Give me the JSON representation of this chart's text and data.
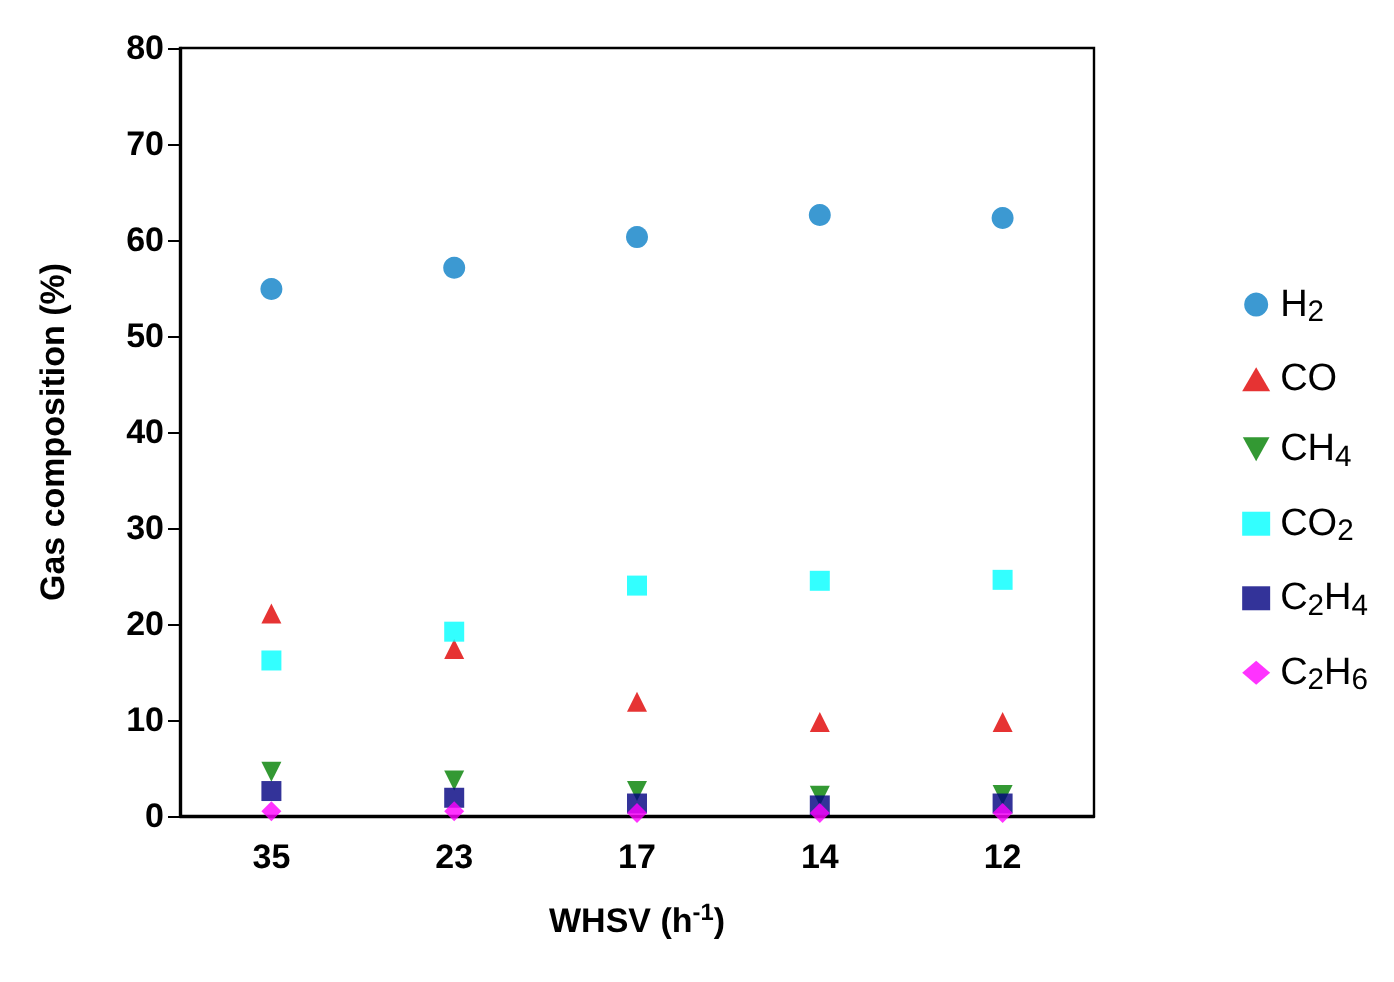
{
  "chart_data": {
    "type": "scatter",
    "xlabel": "WHSV (h$^{-1}$)",
    "ylabel": "Gas composition (%)",
    "categories": [
      "35",
      "23",
      "17",
      "14",
      "12"
    ],
    "ylim": [
      0,
      80
    ],
    "yticks": [
      0,
      10,
      20,
      30,
      40,
      50,
      60,
      70,
      80
    ],
    "grid": false,
    "legend": "right",
    "series": [
      {
        "name": "H$_{2}$",
        "color": "#0b7fc7",
        "marker": "circle",
        "values": [
          54.9,
          57.1,
          60.3,
          62.6,
          62.3
        ]
      },
      {
        "name": "CO",
        "color": "#e00000",
        "marker": "triangle",
        "values": [
          21.1,
          17.4,
          11.9,
          9.8,
          9.8
        ]
      },
      {
        "name": "CH$_{4}$",
        "color": "#008000",
        "marker": "triangle-down",
        "values": [
          4.6,
          3.7,
          2.6,
          2.1,
          2.2
        ]
      },
      {
        "name": "CO$_{2}$",
        "color": "#00ffff",
        "marker": "square",
        "values": [
          16.2,
          19.2,
          24.0,
          24.5,
          24.6
        ]
      },
      {
        "name": "C$_{2}$H$_{4}$",
        "color": "#000080",
        "marker": "square",
        "values": [
          2.6,
          1.9,
          1.3,
          1.1,
          1.3
        ]
      },
      {
        "name": "C$_{2}$H$_{6}$",
        "color": "#ff00ff",
        "marker": "diamond",
        "values": [
          0.5,
          0.5,
          0.3,
          0.3,
          0.3
        ]
      }
    ]
  }
}
